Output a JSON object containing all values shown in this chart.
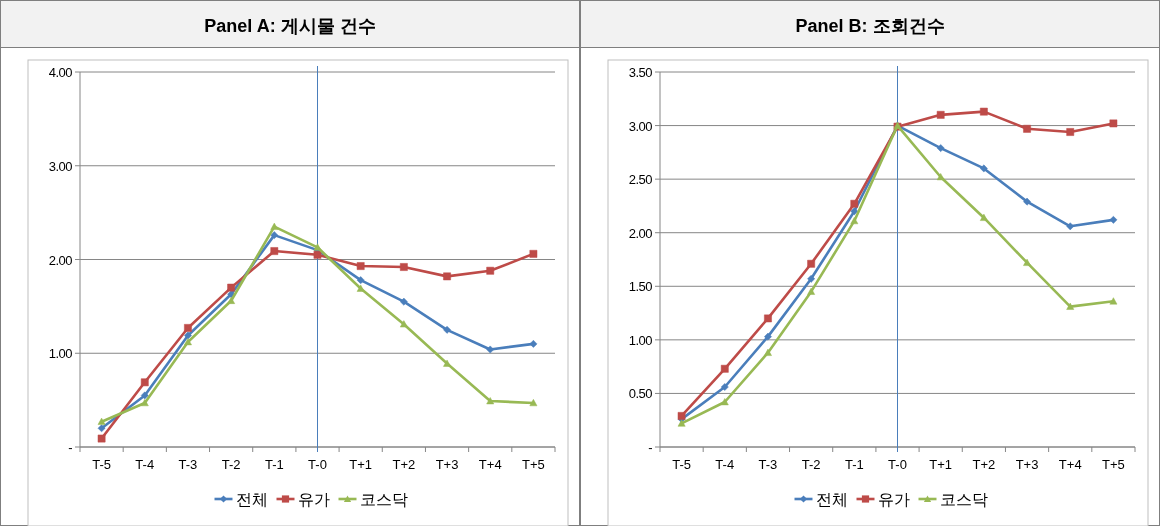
{
  "chart_data": [
    {
      "type": "line",
      "title": "Panel A: 게시물 건수",
      "categories": [
        "T-5",
        "T-4",
        "T-3",
        "T-2",
        "T-1",
        "T-0",
        "T+1",
        "T+2",
        "T+3",
        "T+4",
        "T+5"
      ],
      "ylim": [
        0,
        4
      ],
      "yticks": [
        {
          "value": 0,
          "label": "-"
        },
        {
          "value": 1,
          "label": "1.00"
        },
        {
          "value": 2,
          "label": "2.00"
        },
        {
          "value": 3,
          "label": "3.00"
        },
        {
          "value": 4,
          "label": "4.00"
        }
      ],
      "grid": "y",
      "legend": "bottom",
      "ref_lines": [
        {
          "axis": "x",
          "value": "T-0",
          "color": "#4a7ebb"
        }
      ],
      "series": [
        {
          "name": "전체",
          "color": "#4a7ebb",
          "marker": "diamond",
          "values": [
            0.2,
            0.55,
            1.19,
            1.63,
            2.26,
            2.1,
            1.78,
            1.55,
            1.25,
            1.04,
            1.1
          ]
        },
        {
          "name": "유가",
          "color": "#be4b48",
          "marker": "square",
          "values": [
            0.09,
            0.69,
            1.27,
            1.7,
            2.09,
            2.05,
            1.93,
            1.92,
            1.82,
            1.88,
            2.06
          ]
        },
        {
          "name": "코스닥",
          "color": "#98b954",
          "marker": "triangle",
          "values": [
            0.27,
            0.47,
            1.12,
            1.56,
            2.35,
            2.13,
            1.69,
            1.31,
            0.89,
            0.49,
            0.47
          ]
        }
      ]
    },
    {
      "type": "line",
      "title": "Panel B: 조회건수",
      "categories": [
        "T-5",
        "T-4",
        "T-3",
        "T-2",
        "T-1",
        "T-0",
        "T+1",
        "T+2",
        "T+3",
        "T+4",
        "T+5"
      ],
      "ylim": [
        0,
        3.5
      ],
      "yticks": [
        {
          "value": 0,
          "label": "-"
        },
        {
          "value": 0.5,
          "label": "0.50"
        },
        {
          "value": 1,
          "label": "1.00"
        },
        {
          "value": 1.5,
          "label": "1.50"
        },
        {
          "value": 2,
          "label": "2.00"
        },
        {
          "value": 2.5,
          "label": "2.50"
        },
        {
          "value": 3,
          "label": "3.00"
        },
        {
          "value": 3.5,
          "label": "3.50"
        }
      ],
      "grid": "y",
      "legend": "bottom",
      "ref_lines": [
        {
          "axis": "x",
          "value": "T-0",
          "color": "#4a7ebb"
        }
      ],
      "series": [
        {
          "name": "전체",
          "color": "#4a7ebb",
          "marker": "diamond",
          "values": [
            0.26,
            0.56,
            1.03,
            1.57,
            2.2,
            3.0,
            2.79,
            2.6,
            2.29,
            2.06,
            2.12
          ]
        },
        {
          "name": "유가",
          "color": "#be4b48",
          "marker": "square",
          "values": [
            0.29,
            0.73,
            1.2,
            1.71,
            2.27,
            2.99,
            3.1,
            3.13,
            2.97,
            2.94,
            3.02
          ]
        },
        {
          "name": "코스닥",
          "color": "#98b954",
          "marker": "triangle",
          "values": [
            0.22,
            0.42,
            0.88,
            1.45,
            2.11,
            3.0,
            2.52,
            2.14,
            1.72,
            1.31,
            1.36
          ]
        }
      ]
    }
  ]
}
